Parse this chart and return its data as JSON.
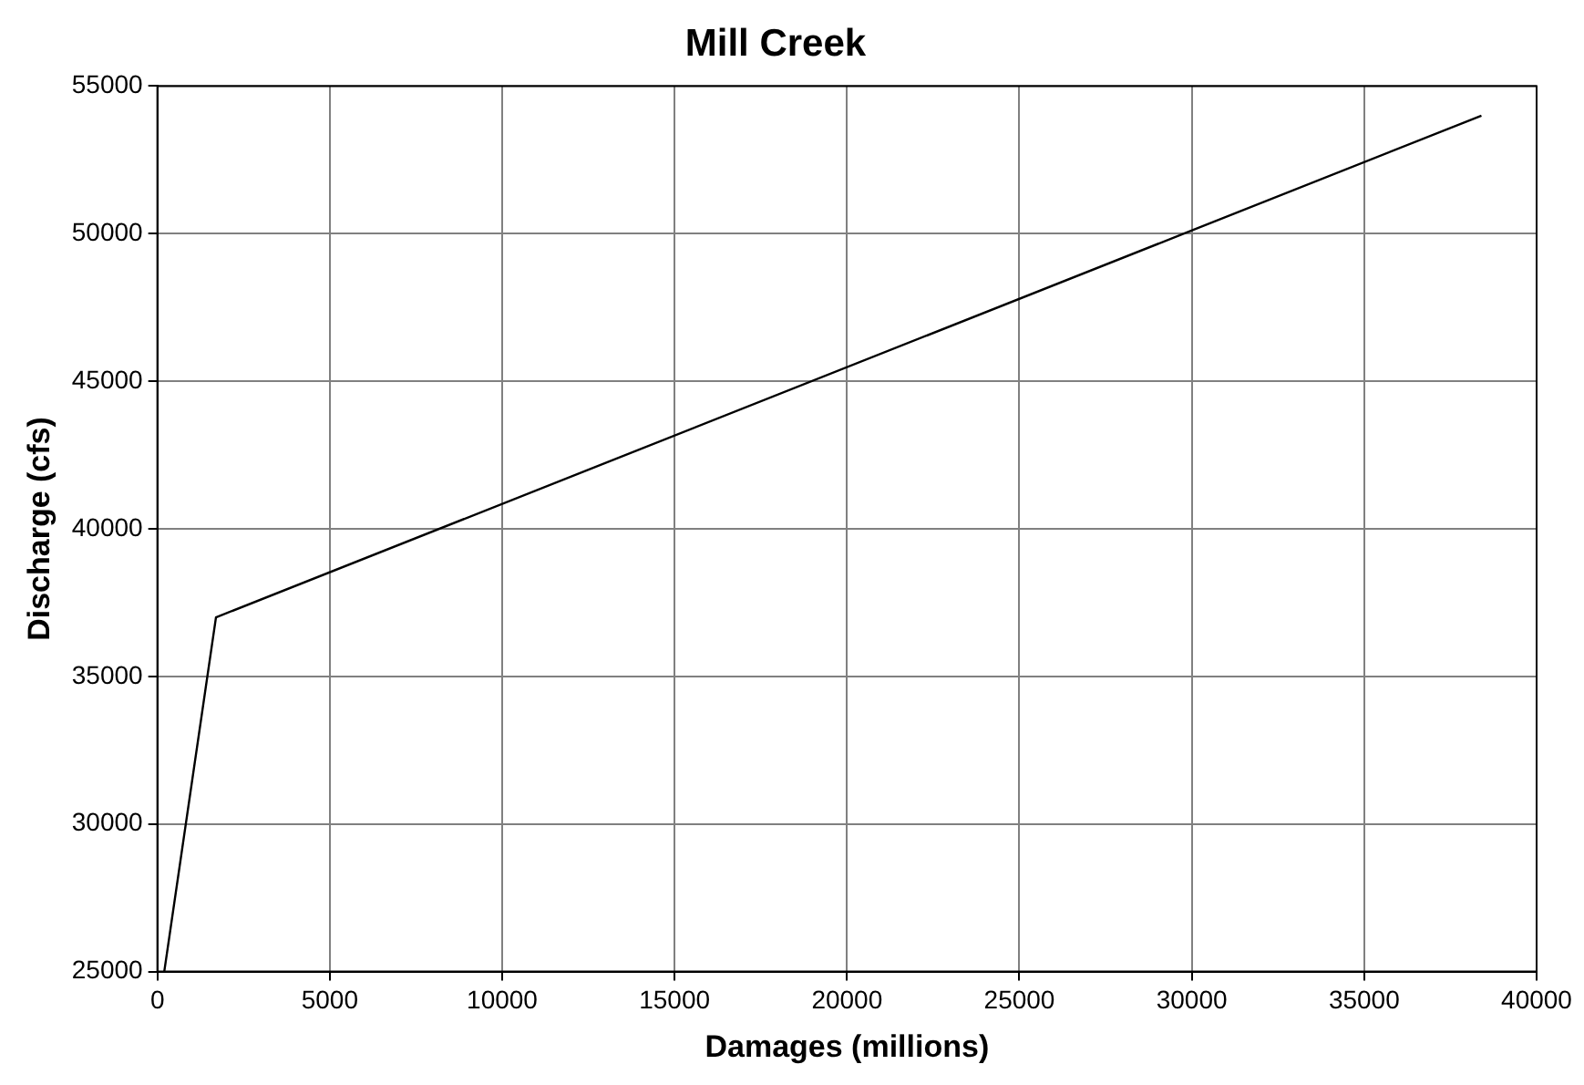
{
  "chart_data": {
    "type": "line",
    "title": "Mill Creek",
    "xlabel": "Damages (millions)",
    "ylabel": "Discharge (cfs)",
    "series": [
      {
        "color": "#000000",
        "x": [
          200,
          1700,
          38400
        ],
        "values": [
          25000,
          37000,
          54000
        ]
      }
    ],
    "xlim": [
      0,
      40000
    ],
    "xticks": [
      0,
      5000,
      10000,
      15000,
      20000,
      25000,
      30000,
      35000,
      40000
    ],
    "ylim": [
      25000,
      55000
    ],
    "yticks": [
      25000,
      30000,
      35000,
      40000,
      45000,
      50000,
      55000
    ],
    "grid": true,
    "legend": false,
    "marker": "none",
    "line_style": "solid"
  }
}
